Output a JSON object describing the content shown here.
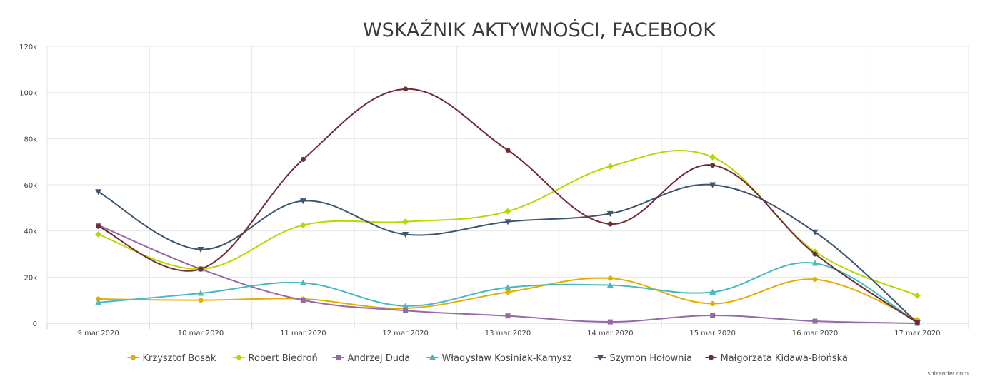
{
  "chart_data": {
    "type": "line",
    "title": "WSKAŹNIK AKTYWNOŚCI, FACEBOOK",
    "ylim": [
      0,
      120000
    ],
    "y_ticks": [
      {
        "value": 0,
        "label": "0"
      },
      {
        "value": 20000,
        "label": "20k"
      },
      {
        "value": 40000,
        "label": "40k"
      },
      {
        "value": 60000,
        "label": "60k"
      },
      {
        "value": 80000,
        "label": "80k"
      },
      {
        "value": 100000,
        "label": "100k"
      },
      {
        "value": 120000,
        "label": "120k"
      }
    ],
    "categories": [
      "9 mar 2020",
      "10 mar 2020",
      "11 mar 2020",
      "12 mar 2020",
      "13 mar 2020",
      "14 mar 2020",
      "15 mar 2020",
      "16 mar 2020",
      "17 mar 2020"
    ],
    "grid": true,
    "legend_position": "bottom",
    "series": [
      {
        "name": "Krzysztof Bosak",
        "color": "#e6ac00",
        "marker": "circle",
        "values": [
          10500,
          10000,
          10500,
          6500,
          13500,
          19500,
          8500,
          19000,
          1500
        ]
      },
      {
        "name": "Robert Biedroń",
        "color": "#b5d900",
        "marker": "diamond",
        "values": [
          38500,
          23500,
          42500,
          44000,
          48500,
          68000,
          72000,
          31000,
          12000
        ]
      },
      {
        "name": "Andrzej Duda",
        "color": "#9568a8",
        "marker": "square",
        "values": [
          42500,
          23500,
          10000,
          5500,
          3200,
          600,
          3400,
          900,
          0
        ]
      },
      {
        "name": "Władysław Kosiniak-Kamysz",
        "color": "#48b8c0",
        "marker": "triangle",
        "values": [
          9000,
          13000,
          17500,
          7500,
          15500,
          16500,
          13500,
          26000,
          300
        ]
      },
      {
        "name": "Szymon Hołownia",
        "color": "#3e5570",
        "marker": "triangle-down",
        "values": [
          57000,
          32000,
          53000,
          38500,
          44000,
          47500,
          60000,
          39500,
          200
        ]
      },
      {
        "name": "Małgorzata Kidawa-Błońska",
        "color": "#6e2c34",
        "marker": "circle",
        "values": [
          42000,
          23500,
          71000,
          101500,
          75000,
          43000,
          68500,
          30000,
          200
        ]
      }
    ]
  },
  "credit": "sotrender.com"
}
